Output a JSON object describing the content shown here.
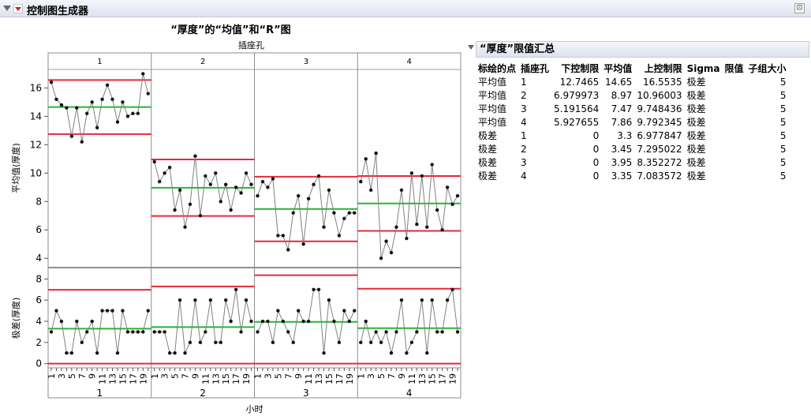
{
  "header": {
    "title": "控制图生成器",
    "collapse_icon": "triangle-down-icon",
    "menu_icon": "red-triangle-menu-icon",
    "corner_icon": "pin-icon"
  },
  "colors": {
    "limit": "#e8283a",
    "center": "#27b535",
    "series": "#808080",
    "point": "#111111"
  },
  "chart_data": {
    "type": "line",
    "title": "“厚度”的“均值”和“R”图",
    "phase_label": "插座孔",
    "phases": [
      "1",
      "2",
      "3",
      "4"
    ],
    "xlabel": "小时",
    "x_ticks": [
      1,
      3,
      5,
      7,
      9,
      11,
      13,
      15,
      17,
      19
    ],
    "mean_chart": {
      "ylabel": "平均值(厚度)",
      "ylim": [
        3.4,
        17.3
      ],
      "yticks": [
        4,
        6,
        8,
        10,
        12,
        14,
        16
      ],
      "series": [
        [
          16.4,
          15.2,
          14.8,
          14.6,
          12.6,
          14.6,
          12.2,
          14.2,
          15.0,
          13.2,
          15.2,
          16.2,
          15.2,
          13.6,
          15.0,
          14.0,
          14.2,
          14.2,
          17.0,
          15.6
        ],
        [
          10.8,
          9.4,
          10.0,
          10.4,
          7.4,
          8.8,
          6.2,
          7.8,
          11.2,
          7.0,
          9.8,
          9.2,
          10.0,
          8.0,
          9.2,
          7.4,
          9.0,
          8.6,
          10.0,
          9.2
        ],
        [
          8.4,
          9.4,
          9.0,
          9.6,
          5.6,
          5.6,
          4.6,
          7.2,
          8.4,
          5.0,
          8.2,
          9.2,
          9.8,
          6.2,
          8.8,
          7.2,
          5.6,
          6.8,
          7.2,
          7.2
        ],
        [
          9.4,
          11.0,
          8.8,
          11.4,
          4.0,
          5.2,
          4.4,
          6.2,
          8.8,
          5.4,
          10.0,
          6.4,
          9.8,
          6.2,
          10.6,
          7.4,
          6.0,
          9.0,
          7.8,
          8.4
        ]
      ],
      "lcl": [
        12.7465,
        6.979973,
        5.191564,
        5.927655
      ],
      "center": [
        14.65,
        8.97,
        7.47,
        7.86
      ],
      "ucl": [
        16.5535,
        10.96003,
        9.748436,
        9.792345
      ]
    },
    "range_chart": {
      "ylabel": "极差(厚度)",
      "ylim": [
        -0.4,
        9.0
      ],
      "yticks": [
        0,
        2,
        4,
        6,
        8
      ],
      "series": [
        [
          3,
          5,
          4,
          1,
          1,
          4,
          2,
          3,
          4,
          1,
          5,
          5,
          5,
          1,
          5,
          3,
          3,
          3,
          3,
          5
        ],
        [
          3,
          3,
          3,
          1,
          1,
          6,
          1,
          2,
          6,
          2,
          3,
          6,
          2,
          2,
          6,
          4,
          7,
          3,
          6,
          4
        ],
        [
          3,
          4,
          4,
          2,
          5,
          4,
          3,
          2,
          5,
          4,
          4,
          7,
          7,
          1,
          6,
          4,
          2,
          5,
          4,
          5
        ],
        [
          2,
          4,
          2,
          3,
          2,
          3,
          1,
          3,
          6,
          1,
          2,
          3,
          6,
          1,
          6,
          3,
          3,
          6,
          7,
          3
        ]
      ],
      "lcl": [
        0,
        0,
        0,
        0
      ],
      "center": [
        3.3,
        3.45,
        3.95,
        3.35
      ],
      "ucl": [
        6.977847,
        7.295022,
        8.352272,
        7.083572
      ]
    }
  },
  "summary": {
    "title": "“厚度”限值汇总",
    "columns": [
      "标绘的点",
      "插座孔",
      "下控制限",
      "平均值",
      "上控制限",
      "Sigma",
      "限值",
      "子组大小"
    ],
    "rows": [
      [
        "平均值",
        "1",
        "12.7465",
        "14.65",
        "16.5535",
        "极差",
        "",
        "5"
      ],
      [
        "平均值",
        "2",
        "6.979973",
        "8.97",
        "10.96003",
        "极差",
        "",
        "5"
      ],
      [
        "平均值",
        "3",
        "5.191564",
        "7.47",
        "9.748436",
        "极差",
        "",
        "5"
      ],
      [
        "平均值",
        "4",
        "5.927655",
        "7.86",
        "9.792345",
        "极差",
        "",
        "5"
      ],
      [
        "极差",
        "1",
        "0",
        "3.3",
        "6.977847",
        "极差",
        "",
        "5"
      ],
      [
        "极差",
        "2",
        "0",
        "3.45",
        "7.295022",
        "极差",
        "",
        "5"
      ],
      [
        "极差",
        "3",
        "0",
        "3.95",
        "8.352272",
        "极差",
        "",
        "5"
      ],
      [
        "极差",
        "4",
        "0",
        "3.35",
        "7.083572",
        "极差",
        "",
        "5"
      ]
    ]
  }
}
